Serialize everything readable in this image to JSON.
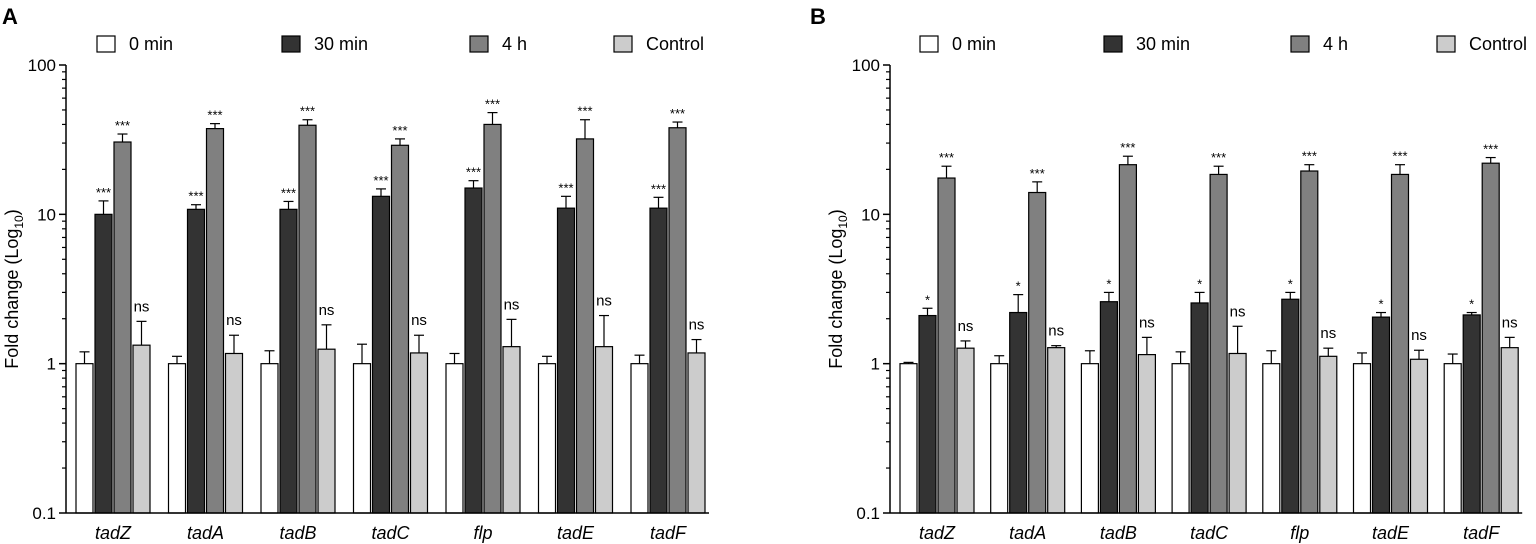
{
  "chart_data": [
    {
      "panel": "A",
      "type": "bar",
      "yscale": "log",
      "ylim": [
        0.1,
        100
      ],
      "yticks": [
        "0.1",
        "1",
        "10",
        "100"
      ],
      "ylabel": "Fold change (Log",
      "ylabel_sub": "10",
      "ylabel_close": ")",
      "categories": [
        "tadZ",
        "tadA",
        "tadB",
        "tadC",
        "flp",
        "tadE",
        "tadF"
      ],
      "series": [
        {
          "name": "0 min",
          "color": "#ffffff",
          "values": [
            1,
            1,
            1,
            1,
            1,
            1,
            1
          ],
          "errors": [
            1.2,
            1.12,
            1.22,
            1.35,
            1.17,
            1.12,
            1.14
          ],
          "sig": [
            "",
            "",
            "",
            "",
            "",
            "",
            ""
          ]
        },
        {
          "name": "30 min",
          "color": "#333333",
          "values": [
            10,
            10.8,
            10.8,
            13.2,
            15,
            11,
            11
          ],
          "errors": [
            12.3,
            11.6,
            12.2,
            14.8,
            16.8,
            13.2,
            13
          ],
          "sig": [
            "***",
            "***",
            "***",
            "***",
            "***",
            "***",
            "***"
          ]
        },
        {
          "name": "4 h",
          "color": "#808080",
          "values": [
            30.5,
            37.5,
            39.5,
            29,
            40,
            32,
            38
          ],
          "errors": [
            34.5,
            40.5,
            43,
            32,
            48,
            43,
            41.5
          ],
          "sig": [
            "***",
            "***",
            "***",
            "***",
            "***",
            "***",
            "***"
          ]
        },
        {
          "name": "Control",
          "color": "#cccccc",
          "values": [
            1.33,
            1.17,
            1.25,
            1.18,
            1.3,
            1.3,
            1.18
          ],
          "errors": [
            1.92,
            1.55,
            1.82,
            1.55,
            1.98,
            2.1,
            1.45
          ],
          "sig": [
            "ns",
            "ns",
            "ns",
            "ns",
            "ns",
            "ns",
            "ns"
          ]
        }
      ]
    },
    {
      "panel": "B",
      "type": "bar",
      "yscale": "log",
      "ylim": [
        0.1,
        100
      ],
      "yticks": [
        "0.1",
        "1",
        "10",
        "100"
      ],
      "ylabel": "Fold change (Log",
      "ylabel_sub": "10",
      "ylabel_close": ")",
      "categories": [
        "tadZ",
        "tadA",
        "tadB",
        "tadC",
        "flp",
        "tadE",
        "tadF"
      ],
      "series": [
        {
          "name": "0 min",
          "color": "#ffffff",
          "values": [
            1,
            1,
            1,
            1,
            1,
            1,
            1
          ],
          "errors": [
            1.02,
            1.13,
            1.22,
            1.2,
            1.22,
            1.18,
            1.16
          ],
          "sig": [
            "",
            "",
            "",
            "",
            "",
            "",
            ""
          ]
        },
        {
          "name": "30 min",
          "color": "#333333",
          "values": [
            2.1,
            2.2,
            2.6,
            2.55,
            2.7,
            2.05,
            2.12
          ],
          "errors": [
            2.35,
            2.9,
            3.0,
            3.0,
            3.0,
            2.2,
            2.2
          ],
          "sig": [
            "*",
            "*",
            "*",
            "*",
            "*",
            "*",
            "*"
          ]
        },
        {
          "name": "4 h",
          "color": "#808080",
          "values": [
            17.5,
            14,
            21.5,
            18.5,
            19.5,
            18.5,
            22
          ],
          "errors": [
            21,
            16.5,
            24.5,
            21,
            21.5,
            21.5,
            24
          ],
          "sig": [
            "***",
            "***",
            "***",
            "***",
            "***",
            "***",
            "***"
          ]
        },
        {
          "name": "Control",
          "color": "#cccccc",
          "values": [
            1.27,
            1.28,
            1.15,
            1.17,
            1.12,
            1.07,
            1.28
          ],
          "errors": [
            1.42,
            1.32,
            1.5,
            1.78,
            1.27,
            1.23,
            1.5
          ],
          "sig": [
            "ns",
            "ns",
            "ns",
            "ns",
            "ns",
            "ns",
            "ns"
          ]
        }
      ]
    }
  ]
}
